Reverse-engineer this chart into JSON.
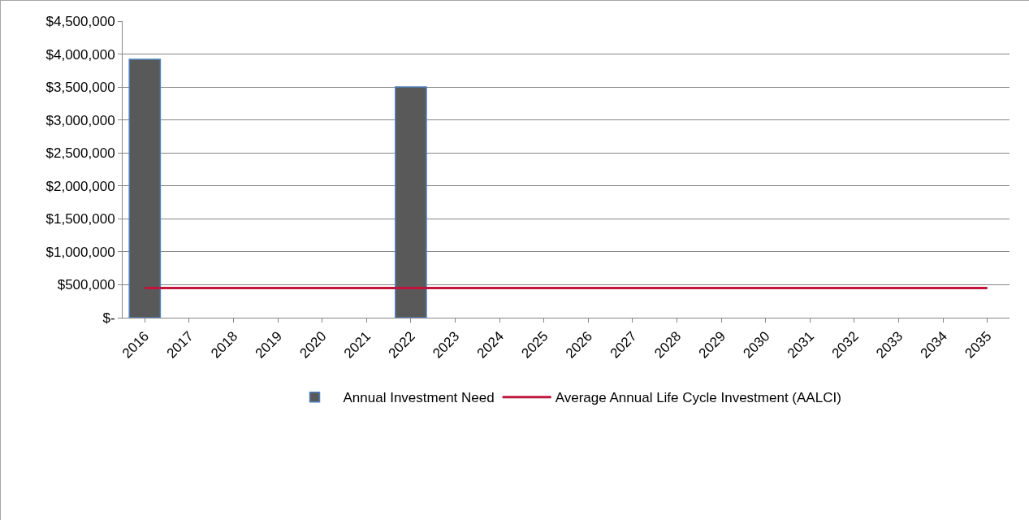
{
  "chart_data": {
    "type": "bar",
    "categories": [
      "2016",
      "2017",
      "2018",
      "2019",
      "2020",
      "2021",
      "2022",
      "2023",
      "2024",
      "2025",
      "2026",
      "2027",
      "2028",
      "2029",
      "2030",
      "2031",
      "2032",
      "2033",
      "2034",
      "2035"
    ],
    "series": [
      {
        "name": "Annual Investment Need",
        "color": "#595959",
        "values": [
          3920000,
          0,
          0,
          0,
          0,
          0,
          3500000,
          0,
          0,
          0,
          0,
          0,
          0,
          0,
          0,
          0,
          0,
          0,
          0,
          0
        ]
      },
      {
        "name": "Average Annual Life Cycle Investment (AALCI)",
        "type": "line",
        "color": "#c0143c",
        "values": [
          450000,
          450000,
          450000,
          450000,
          450000,
          450000,
          450000,
          450000,
          450000,
          450000,
          450000,
          450000,
          450000,
          450000,
          450000,
          450000,
          450000,
          450000,
          450000,
          450000
        ]
      }
    ],
    "ylim": [
      0,
      4500000
    ],
    "yticks": [
      {
        "value": 0,
        "label": "$-"
      },
      {
        "value": 500000,
        "label": "$500,000"
      },
      {
        "value": 1000000,
        "label": "$1,000,000"
      },
      {
        "value": 1500000,
        "label": "$1,500,000"
      },
      {
        "value": 2000000,
        "label": "$2,000,000"
      },
      {
        "value": 2500000,
        "label": "$2,500,000"
      },
      {
        "value": 3000000,
        "label": "$3,000,000"
      },
      {
        "value": 3500000,
        "label": "$3,500,000"
      },
      {
        "value": 4000000,
        "label": "$4,000,000"
      },
      {
        "value": 4500000,
        "label": "$4,500,000"
      }
    ],
    "grid": "y",
    "legend": "bottom",
    "marker": "none",
    "line_style": "solid"
  }
}
